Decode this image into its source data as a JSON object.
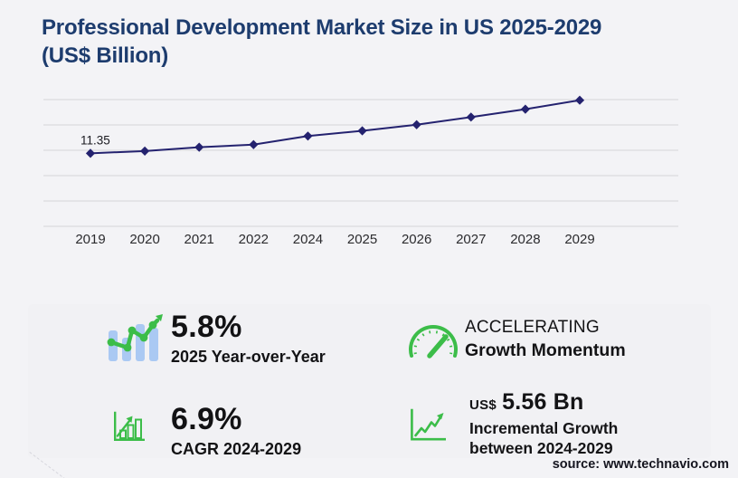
{
  "title": {
    "line1": "Professional Development Market Size in US 2025-2029",
    "line2": "(US$ Billion)"
  },
  "chart_data": {
    "type": "line",
    "title": "Professional Development Market Size in US 2025-2029 (US$ Billion)",
    "categories": [
      "2019",
      "2020",
      "2021",
      "2022",
      "2024",
      "2025",
      "2026",
      "2027",
      "2028",
      "2029"
    ],
    "values": [
      11.35,
      11.7,
      12.3,
      12.7,
      14.03,
      14.85,
      15.8,
      16.98,
      18.2,
      19.6
    ],
    "first_point_label": "11.35",
    "xlabel": "",
    "ylabel": "US$ Billion",
    "ylim": [
      0,
      20
    ],
    "gridline_step": 4,
    "grid": "horizontal",
    "legend": "none",
    "marker": "diamond",
    "line_color": "#24226f"
  },
  "stats": {
    "yoy": {
      "value": "5.8%",
      "label": "2025 Year-over-Year"
    },
    "momentum": {
      "line1": "ACCELERATING",
      "line2": "Growth Momentum"
    },
    "cagr": {
      "value": "6.9%",
      "label": "CAGR 2024-2029"
    },
    "incremental": {
      "prefix": "US$",
      "value": "5.56 Bn",
      "label1": "Incremental Growth",
      "label2": "between 2024-2029"
    }
  },
  "source": {
    "text": "source: www.technavio.com"
  },
  "colors": {
    "title_navy": "#1d3c6e",
    "line_navy": "#24226f",
    "accent_green": "#3cbd49",
    "icon_bar_blue": "#aac9f3",
    "gridline_gray": "#d4d4d8",
    "text_dark": "#141416",
    "panel_bg": "#f1f1f4",
    "page_bg": "#f3f3f6"
  }
}
